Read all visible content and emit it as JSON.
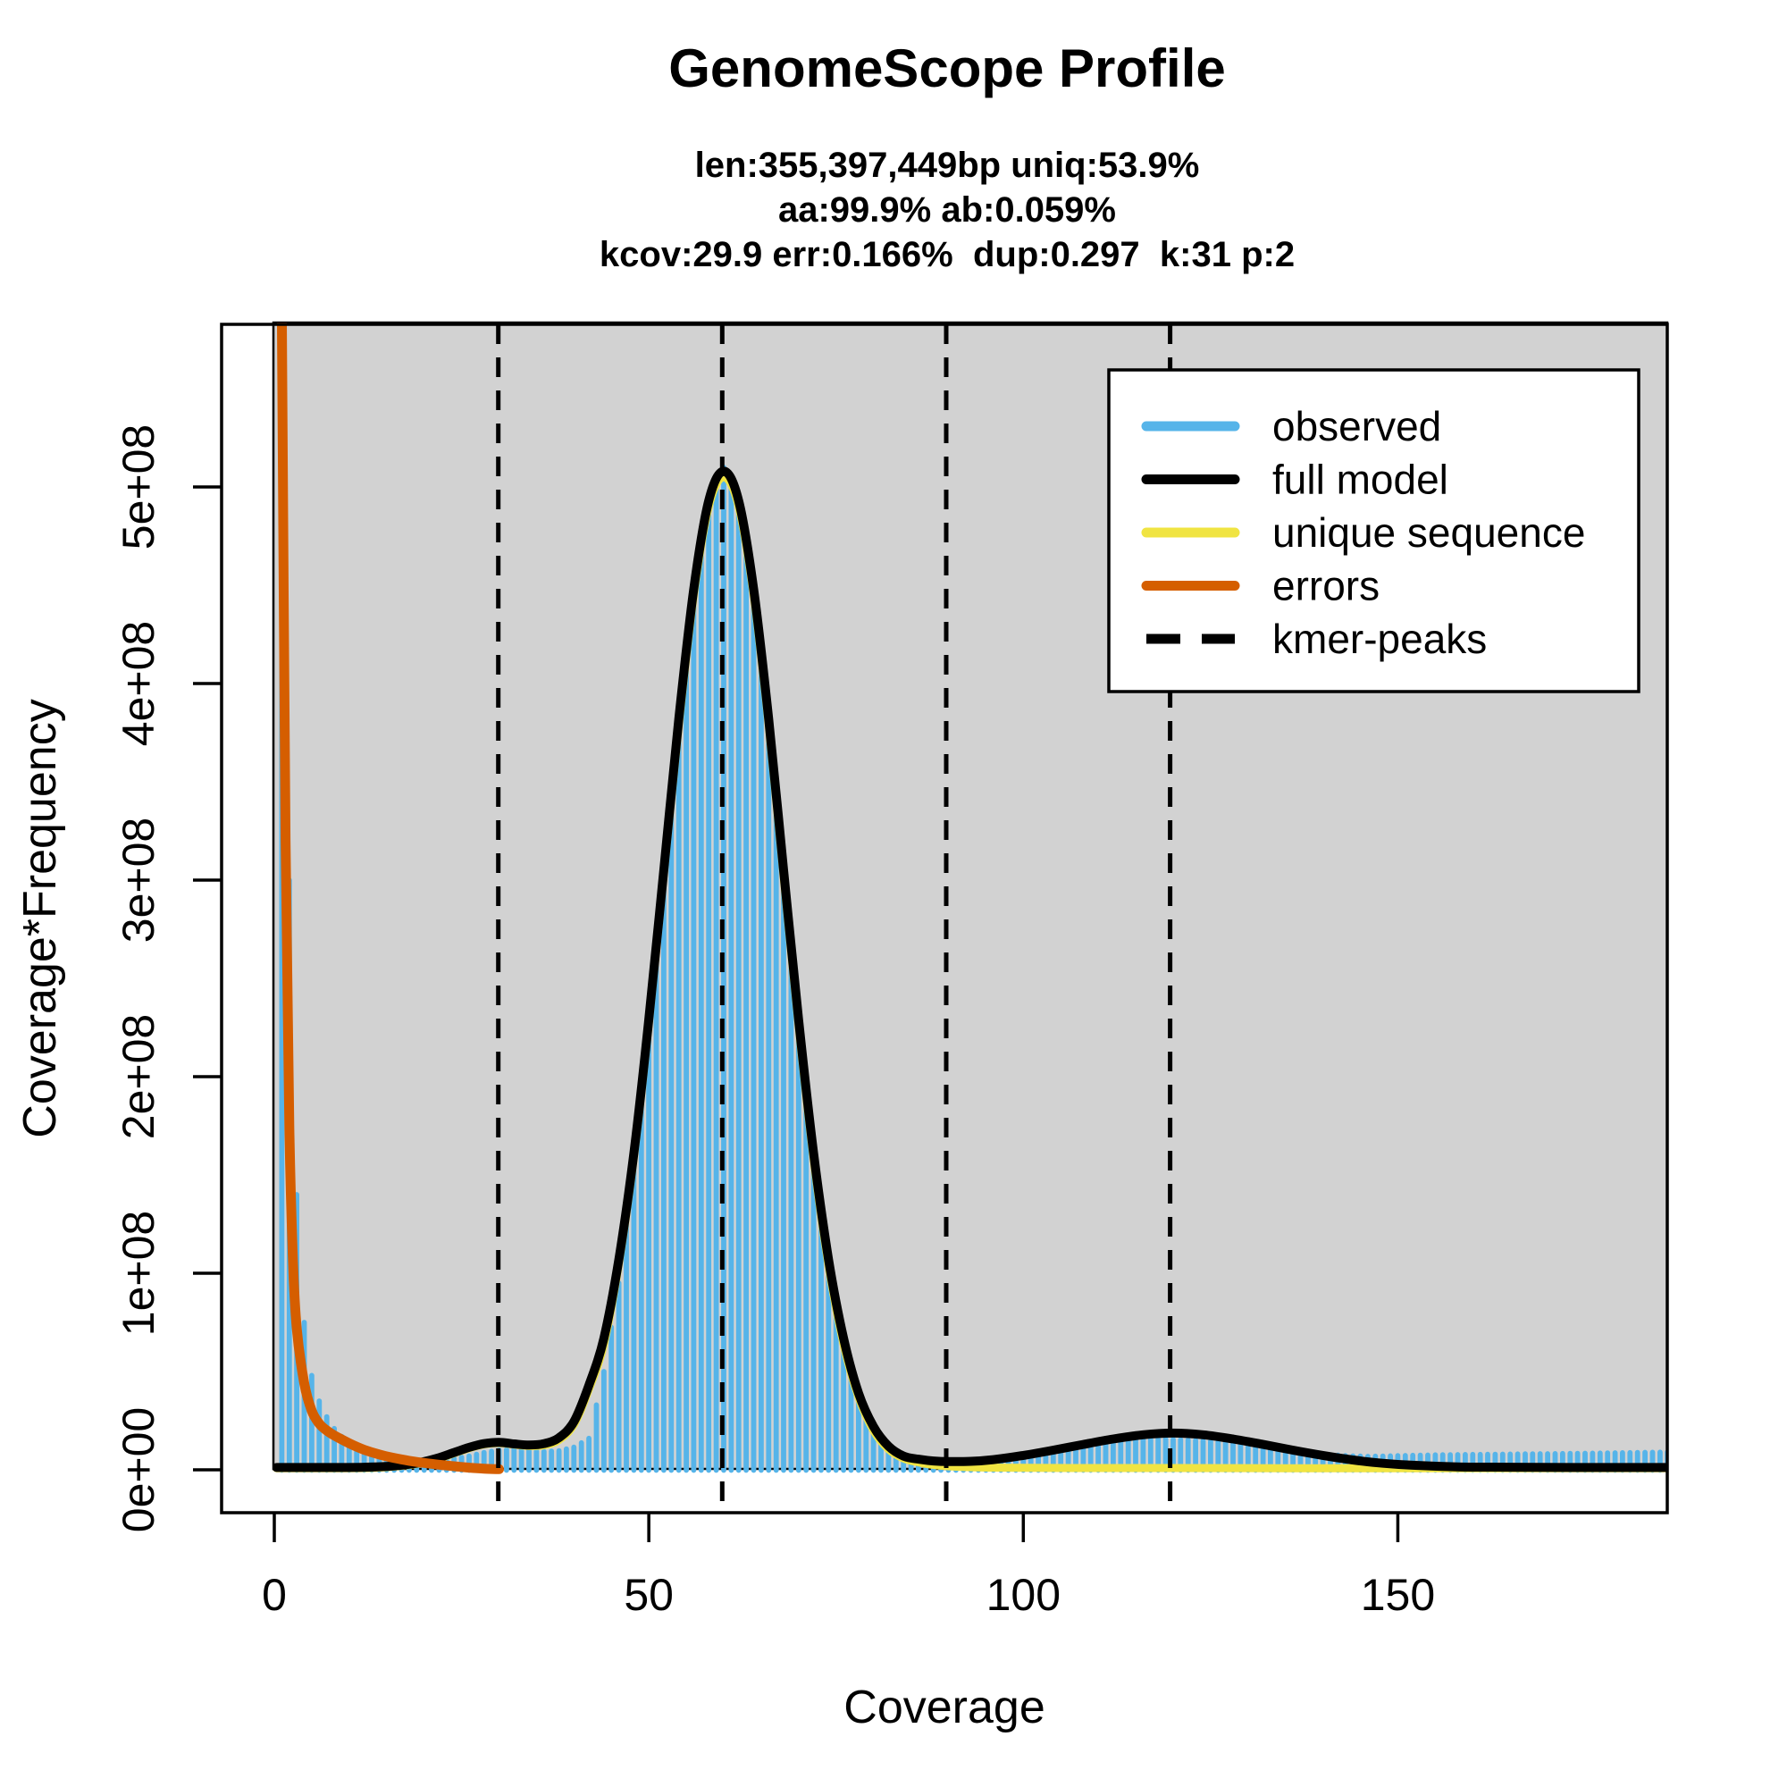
{
  "title": "GenomeScope Profile",
  "subtitle_lines": [
    "len:355,397,449bp uniq:53.9%",
    "aa:99.9% ab:0.059%",
    "kcov:29.9 err:0.166%  dup:0.297  k:31 p:2"
  ],
  "colors": {
    "observed": "#56B4E9",
    "full_model": "#000000",
    "unique_sequence": "#F0E442",
    "errors": "#D55E00",
    "kmer_peaks": "#000000",
    "plot_background": "#D2D2D2",
    "page_background": "#FFFFFF"
  },
  "legend": [
    {
      "label": "observed",
      "color": "#56B4E9",
      "style": "solid"
    },
    {
      "label": "full model",
      "color": "#000000",
      "style": "solid"
    },
    {
      "label": "unique sequence",
      "color": "#F0E442",
      "style": "solid"
    },
    {
      "label": "errors",
      "color": "#D55E00",
      "style": "solid"
    },
    {
      "label": "kmer-peaks",
      "color": "#000000",
      "style": "dashed"
    }
  ],
  "chart_data": {
    "type": "bar",
    "subtype": "kmer-histogram-with-model-overlays",
    "title": "GenomeScope Profile",
    "xlabel": "Coverage",
    "ylabel": "Coverage*Frequency",
    "grid": false,
    "legend_position": "top-right",
    "x_domain": [
      0,
      186
    ],
    "y_domain": [
      0,
      583000000
    ],
    "value_unit": 100000000,
    "x_tick_values": [
      0,
      50,
      100,
      150
    ],
    "x_tick_labels": [
      "0",
      "50",
      "100",
      "150"
    ],
    "y_tick_values": [
      0,
      1,
      2,
      3,
      4,
      5
    ],
    "y_tick_labels": [
      "0e+00",
      "1e+08",
      "2e+08",
      "3e+08",
      "4e+08",
      "5e+08"
    ],
    "kmer_peaks": [
      29.9,
      59.8,
      89.7,
      119.6
    ],
    "series": {
      "observed": [
        [
          1,
          5.9
        ],
        [
          2,
          3.0
        ],
        [
          3,
          1.4
        ],
        [
          4,
          0.75
        ],
        [
          5,
          0.48
        ],
        [
          6,
          0.35
        ],
        [
          7,
          0.27
        ],
        [
          8,
          0.21
        ],
        [
          9,
          0.17
        ],
        [
          10,
          0.14
        ],
        [
          11,
          0.12
        ],
        [
          12,
          0.105
        ],
        [
          13,
          0.09
        ],
        [
          14,
          0.08
        ],
        [
          16,
          0.063
        ],
        [
          18,
          0.052
        ],
        [
          20,
          0.046
        ],
        [
          22,
          0.05
        ],
        [
          24,
          0.058
        ],
        [
          26,
          0.07
        ],
        [
          28,
          0.088
        ],
        [
          30,
          0.1
        ],
        [
          32,
          0.105
        ],
        [
          34,
          0.1
        ],
        [
          36,
          0.093
        ],
        [
          38,
          0.097
        ],
        [
          40,
          0.115
        ],
        [
          42,
          0.16
        ],
        [
          44,
          0.5
        ],
        [
          46,
          0.95
        ],
        [
          48,
          1.6
        ],
        [
          50,
          2.3
        ],
        [
          52,
          3.05
        ],
        [
          54,
          3.8
        ],
        [
          56,
          4.5
        ],
        [
          58,
          4.95
        ],
        [
          60,
          5.1
        ],
        [
          62,
          4.95
        ],
        [
          64,
          4.5
        ],
        [
          66,
          3.8
        ],
        [
          68,
          3.0
        ],
        [
          70,
          2.27
        ],
        [
          72,
          1.6
        ],
        [
          74,
          1.0
        ],
        [
          76,
          0.63
        ],
        [
          78,
          0.37
        ],
        [
          80,
          0.21
        ],
        [
          82,
          0.12
        ],
        [
          84,
          0.073
        ],
        [
          86,
          0.052
        ],
        [
          88,
          0.042
        ],
        [
          90,
          0.04
        ],
        [
          92,
          0.043
        ],
        [
          94,
          0.048
        ],
        [
          96,
          0.058
        ],
        [
          98,
          0.068
        ],
        [
          100,
          0.08
        ],
        [
          103,
          0.1
        ],
        [
          106,
          0.12
        ],
        [
          110,
          0.14
        ],
        [
          113,
          0.15
        ],
        [
          116,
          0.154
        ],
        [
          119,
          0.156
        ],
        [
          122,
          0.152
        ],
        [
          125,
          0.145
        ],
        [
          128,
          0.132
        ],
        [
          131,
          0.115
        ],
        [
          134,
          0.1
        ],
        [
          137,
          0.088
        ],
        [
          140,
          0.078
        ],
        [
          143,
          0.072
        ],
        [
          146,
          0.068
        ],
        [
          150,
          0.072
        ],
        [
          155,
          0.076
        ],
        [
          160,
          0.078
        ],
        [
          165,
          0.08
        ],
        [
          170,
          0.082
        ],
        [
          175,
          0.084
        ],
        [
          180,
          0.087
        ],
        [
          186,
          0.09
        ]
      ],
      "full_model": [
        [
          0.3,
          0.012
        ],
        [
          4,
          0.012
        ],
        [
          8,
          0.012
        ],
        [
          12,
          0.013
        ],
        [
          15,
          0.017
        ],
        [
          18,
          0.028
        ],
        [
          20,
          0.042
        ],
        [
          22,
          0.062
        ],
        [
          24,
          0.088
        ],
        [
          26,
          0.114
        ],
        [
          28,
          0.133
        ],
        [
          30,
          0.14
        ],
        [
          32,
          0.132
        ],
        [
          34,
          0.126
        ],
        [
          36,
          0.133
        ],
        [
          38,
          0.163
        ],
        [
          40,
          0.245
        ],
        [
          42,
          0.43
        ],
        [
          44,
          0.67
        ],
        [
          46,
          1.07
        ],
        [
          48,
          1.61
        ],
        [
          50,
          2.29
        ],
        [
          52,
          3.05
        ],
        [
          54,
          3.82
        ],
        [
          56,
          4.48
        ],
        [
          58,
          4.93
        ],
        [
          60,
          5.08
        ],
        [
          62,
          4.93
        ],
        [
          64,
          4.48
        ],
        [
          66,
          3.82
        ],
        [
          68,
          3.05
        ],
        [
          70,
          2.29
        ],
        [
          72,
          1.61
        ],
        [
          74,
          1.07
        ],
        [
          76,
          0.67
        ],
        [
          78,
          0.39
        ],
        [
          80,
          0.22
        ],
        [
          82,
          0.12
        ],
        [
          84,
          0.07
        ],
        [
          86,
          0.054
        ],
        [
          88,
          0.045
        ],
        [
          90,
          0.042
        ],
        [
          93,
          0.043
        ],
        [
          96,
          0.052
        ],
        [
          100,
          0.073
        ],
        [
          104,
          0.1
        ],
        [
          108,
          0.129
        ],
        [
          112,
          0.157
        ],
        [
          116,
          0.178
        ],
        [
          120,
          0.187
        ],
        [
          124,
          0.178
        ],
        [
          128,
          0.157
        ],
        [
          132,
          0.129
        ],
        [
          136,
          0.1
        ],
        [
          140,
          0.073
        ],
        [
          144,
          0.05
        ],
        [
          148,
          0.033
        ],
        [
          152,
          0.023
        ],
        [
          158,
          0.015
        ],
        [
          165,
          0.013
        ],
        [
          175,
          0.012
        ],
        [
          186,
          0.012
        ]
      ],
      "unique_sequence": [
        [
          0.3,
          0.008
        ],
        [
          8,
          0.008
        ],
        [
          12,
          0.009
        ],
        [
          15,
          0.013
        ],
        [
          18,
          0.024
        ],
        [
          20,
          0.038
        ],
        [
          22,
          0.058
        ],
        [
          24,
          0.084
        ],
        [
          26,
          0.11
        ],
        [
          28,
          0.129
        ],
        [
          30,
          0.136
        ],
        [
          32,
          0.128
        ],
        [
          34,
          0.121
        ],
        [
          36,
          0.125
        ],
        [
          38,
          0.152
        ],
        [
          40,
          0.23
        ],
        [
          42,
          0.41
        ],
        [
          44,
          0.64
        ],
        [
          46,
          1.05
        ],
        [
          48,
          1.59
        ],
        [
          50,
          2.27
        ],
        [
          52,
          3.03
        ],
        [
          54,
          3.79
        ],
        [
          56,
          4.45
        ],
        [
          58,
          4.9
        ],
        [
          60,
          5.05
        ],
        [
          62,
          4.9
        ],
        [
          64,
          4.45
        ],
        [
          66,
          3.79
        ],
        [
          68,
          3.02
        ],
        [
          70,
          2.26
        ],
        [
          72,
          1.58
        ],
        [
          74,
          1.04
        ],
        [
          76,
          0.64
        ],
        [
          78,
          0.37
        ],
        [
          80,
          0.2
        ],
        [
          82,
          0.105
        ],
        [
          84,
          0.058
        ],
        [
          86,
          0.038
        ],
        [
          88,
          0.025
        ],
        [
          90,
          0.018
        ],
        [
          93,
          0.013
        ],
        [
          96,
          0.011
        ],
        [
          100,
          0.01
        ],
        [
          110,
          0.009
        ],
        [
          120,
          0.009
        ],
        [
          135,
          0.008
        ],
        [
          150,
          0.008
        ],
        [
          165,
          0.008
        ],
        [
          186,
          0.008
        ]
      ],
      "errors": [
        [
          1,
          5.9
        ],
        [
          1.5,
          3.2
        ],
        [
          2,
          1.75
        ],
        [
          2.5,
          1.05
        ],
        [
          3,
          0.72
        ],
        [
          4,
          0.44
        ],
        [
          5,
          0.3
        ],
        [
          6,
          0.235
        ],
        [
          7,
          0.2
        ],
        [
          8,
          0.175
        ],
        [
          10,
          0.135
        ],
        [
          12,
          0.102
        ],
        [
          14,
          0.078
        ],
        [
          16,
          0.06
        ],
        [
          18,
          0.046
        ],
        [
          20,
          0.035
        ],
        [
          22,
          0.026
        ],
        [
          24,
          0.018
        ],
        [
          26,
          0.011
        ],
        [
          28,
          0.006
        ],
        [
          30,
          0.003
        ]
      ]
    }
  }
}
